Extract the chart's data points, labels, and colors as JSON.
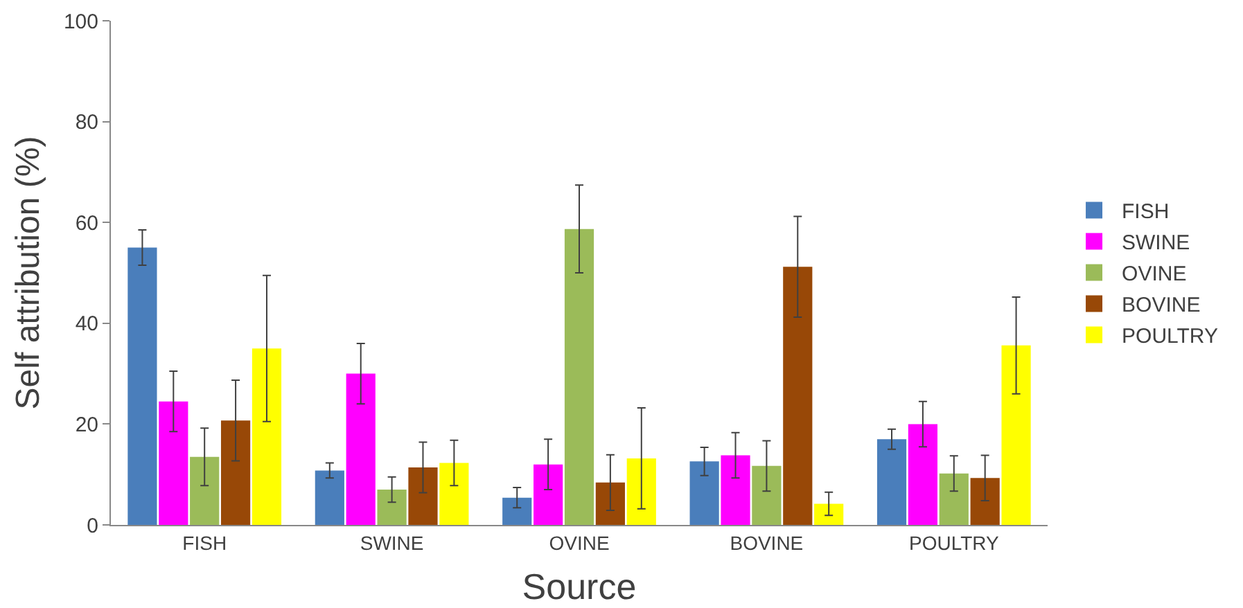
{
  "chart_data": {
    "type": "bar",
    "xlabel": "Source",
    "ylabel": "Self attribution (%)",
    "categories": [
      "FISH",
      "SWINE",
      "OVINE",
      "BOVINE",
      "POULTRY"
    ],
    "series": [
      {
        "name": "FISH",
        "color": "#4a7ebb",
        "values": [
          55,
          10.8,
          5.4,
          12.6,
          17
        ],
        "errors": [
          3.5,
          1.5,
          2,
          2.8,
          2
        ]
      },
      {
        "name": "SWINE",
        "color": "#ff00ff",
        "values": [
          24.5,
          30,
          12,
          13.8,
          20
        ],
        "errors": [
          6,
          6,
          5,
          4.5,
          4.5
        ]
      },
      {
        "name": "OVINE",
        "color": "#9bbb59",
        "values": [
          13.5,
          7,
          58.7,
          11.7,
          10.2
        ],
        "errors": [
          5.7,
          2.5,
          8.7,
          5,
          3.5
        ]
      },
      {
        "name": "BOVINE",
        "color": "#984807",
        "values": [
          20.7,
          11.4,
          8.4,
          51.2,
          9.3
        ],
        "errors": [
          8,
          5,
          5.5,
          10,
          4.5
        ]
      },
      {
        "name": "POULTRY",
        "color": "#ffff00",
        "values": [
          35,
          12.3,
          13.2,
          4.2,
          35.6
        ],
        "errors": [
          14.5,
          4.5,
          10,
          2.3,
          9.6
        ]
      }
    ],
    "ylim": [
      0,
      100
    ],
    "yticks": [
      0,
      20,
      40,
      60,
      80,
      100
    ],
    "grid": false,
    "legend": "right"
  }
}
